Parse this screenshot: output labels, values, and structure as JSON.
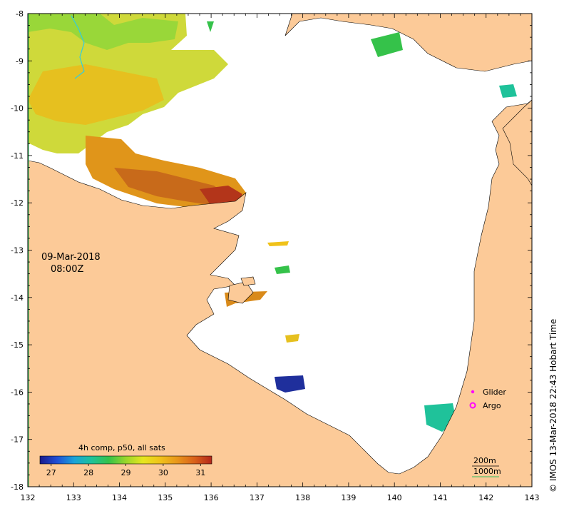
{
  "date_label": "09-Mar-2018",
  "time_label": "08:00Z",
  "credit": "© IMOS 13-Mar-2018 22:43 Hobart Time",
  "axes": {
    "x_ticks": [
      "132",
      "133",
      "134",
      "135",
      "136",
      "137",
      "138",
      "139",
      "140",
      "141",
      "142",
      "143"
    ],
    "y_ticks": [
      "-8",
      "-9",
      "-10",
      "-11",
      "-12",
      "-13",
      "-14",
      "-15",
      "-16",
      "-17",
      "-18"
    ],
    "lon_range": [
      132,
      143
    ],
    "lat_range": [
      -18,
      -8
    ]
  },
  "colorbar": {
    "title": "4h comp, p50, all sats",
    "ticks": [
      "27",
      "28",
      "29",
      "30",
      "31"
    ],
    "range": [
      26.7,
      31.3
    ],
    "colors": [
      "#1a1a8c",
      "#1f4fd6",
      "#1aa3d9",
      "#1fc29a",
      "#35c24a",
      "#9ad62b",
      "#e6e61f",
      "#f0c21a",
      "#e8951a",
      "#d9611a",
      "#b3261a"
    ]
  },
  "legend": {
    "items": [
      {
        "label": "Glider",
        "color": "#ff00ff"
      },
      {
        "label": "Argo",
        "color": "#ff00ff"
      }
    ]
  },
  "contours": {
    "items": [
      {
        "label": "200m",
        "color": "#000000"
      },
      {
        "label": "1000m",
        "color": "#2fbf5f"
      }
    ]
  },
  "colors": {
    "land": "#fcca98",
    "sea": "#ffffff",
    "river": "#33ccdd"
  }
}
